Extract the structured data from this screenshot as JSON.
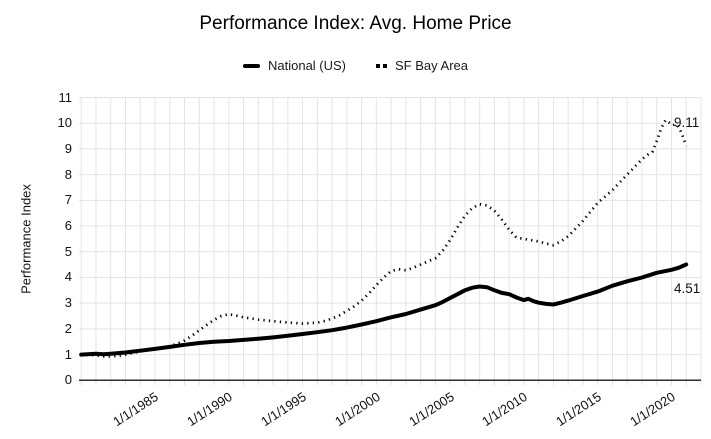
{
  "title": "Performance Index: Avg. Home Price",
  "legend": [
    {
      "label": "National (US)",
      "marker": "solid-dash"
    },
    {
      "label": "SF Bay Area",
      "marker": "dotted"
    }
  ],
  "colors": {
    "series": "#000000",
    "grid": "#e4e4e4",
    "axis": "#2d2d2d",
    "text": "#111111",
    "background": "#ffffff"
  },
  "chart_data": {
    "type": "line",
    "title": "Performance Index: Avg. Home Price",
    "xlabel": "",
    "ylabel": "Performance Index",
    "ylim": [
      0,
      11
    ],
    "xlim": [
      1979.85,
      2022
    ],
    "grid": true,
    "legend_position": "top",
    "y_ticks": [
      0,
      1,
      2,
      3,
      4,
      5,
      6,
      7,
      8,
      9,
      10,
      11
    ],
    "x_ticks": [
      {
        "year": 1985,
        "label": "1/1/1985"
      },
      {
        "year": 1990,
        "label": "1/1/1990"
      },
      {
        "year": 1995,
        "label": "1/1/1995"
      },
      {
        "year": 2000,
        "label": "1/1/2000"
      },
      {
        "year": 2005,
        "label": "1/1/2005"
      },
      {
        "year": 2010,
        "label": "1/1/2010"
      },
      {
        "year": 2015,
        "label": "1/1/2015"
      },
      {
        "year": 2020,
        "label": "1/1/2020"
      }
    ],
    "series": [
      {
        "name": "National (US)",
        "style": "solid",
        "color": "#000000",
        "points": [
          [
            1980,
            1.0
          ],
          [
            1981,
            1.03
          ],
          [
            1981.5,
            1.01
          ],
          [
            1982,
            1.03
          ],
          [
            1983,
            1.08
          ],
          [
            1984,
            1.15
          ],
          [
            1985,
            1.22
          ],
          [
            1986,
            1.3
          ],
          [
            1987,
            1.38
          ],
          [
            1988,
            1.45
          ],
          [
            1989,
            1.5
          ],
          [
            1990,
            1.53
          ],
          [
            1991,
            1.57
          ],
          [
            1992,
            1.62
          ],
          [
            1993,
            1.67
          ],
          [
            1994,
            1.73
          ],
          [
            1995,
            1.8
          ],
          [
            1996,
            1.87
          ],
          [
            1997,
            1.95
          ],
          [
            1998,
            2.05
          ],
          [
            1999,
            2.17
          ],
          [
            2000,
            2.3
          ],
          [
            2001,
            2.45
          ],
          [
            2002,
            2.58
          ],
          [
            2003,
            2.75
          ],
          [
            2004,
            2.92
          ],
          [
            2004.5,
            3.05
          ],
          [
            2005,
            3.2
          ],
          [
            2005.5,
            3.35
          ],
          [
            2006,
            3.5
          ],
          [
            2006.5,
            3.6
          ],
          [
            2007,
            3.65
          ],
          [
            2007.5,
            3.62
          ],
          [
            2008,
            3.5
          ],
          [
            2008.5,
            3.4
          ],
          [
            2009,
            3.35
          ],
          [
            2009.5,
            3.22
          ],
          [
            2010,
            3.12
          ],
          [
            2010.3,
            3.17
          ],
          [
            2010.7,
            3.07
          ],
          [
            2011,
            3.02
          ],
          [
            2011.5,
            2.97
          ],
          [
            2012,
            2.95
          ],
          [
            2012.5,
            3.02
          ],
          [
            2013,
            3.1
          ],
          [
            2014,
            3.28
          ],
          [
            2015,
            3.45
          ],
          [
            2016,
            3.68
          ],
          [
            2017,
            3.85
          ],
          [
            2018,
            4.0
          ],
          [
            2019,
            4.18
          ],
          [
            2020,
            4.3
          ],
          [
            2020.5,
            4.38
          ],
          [
            2021,
            4.51
          ]
        ]
      },
      {
        "name": "SF Bay Area",
        "style": "dotted",
        "color": "#000000",
        "points": [
          [
            1980,
            1.0
          ],
          [
            1980.5,
            0.99
          ],
          [
            1981,
            0.97
          ],
          [
            1981.7,
            0.92
          ],
          [
            1982.5,
            0.95
          ],
          [
            1983,
            1.0
          ],
          [
            1984,
            1.12
          ],
          [
            1985,
            1.22
          ],
          [
            1986,
            1.33
          ],
          [
            1986.5,
            1.42
          ],
          [
            1987,
            1.55
          ],
          [
            1987.5,
            1.73
          ],
          [
            1988,
            1.95
          ],
          [
            1988.5,
            2.15
          ],
          [
            1989,
            2.35
          ],
          [
            1989.5,
            2.5
          ],
          [
            1990,
            2.57
          ],
          [
            1990.5,
            2.52
          ],
          [
            1991,
            2.45
          ],
          [
            1992,
            2.36
          ],
          [
            1993,
            2.3
          ],
          [
            1994,
            2.25
          ],
          [
            1995,
            2.21
          ],
          [
            1996,
            2.24
          ],
          [
            1996.5,
            2.31
          ],
          [
            1997,
            2.4
          ],
          [
            1997.5,
            2.53
          ],
          [
            1998,
            2.7
          ],
          [
            1998.5,
            2.88
          ],
          [
            1999,
            3.1
          ],
          [
            1999.5,
            3.38
          ],
          [
            2000,
            3.7
          ],
          [
            2000.5,
            4.0
          ],
          [
            2001,
            4.25
          ],
          [
            2001.5,
            4.32
          ],
          [
            2002,
            4.28
          ],
          [
            2002.5,
            4.38
          ],
          [
            2003,
            4.5
          ],
          [
            2004,
            4.75
          ],
          [
            2004.5,
            5.05
          ],
          [
            2005,
            5.45
          ],
          [
            2005.5,
            5.95
          ],
          [
            2006,
            6.4
          ],
          [
            2006.5,
            6.7
          ],
          [
            2007,
            6.85
          ],
          [
            2007.5,
            6.8
          ],
          [
            2008,
            6.6
          ],
          [
            2008.5,
            6.25
          ],
          [
            2009,
            5.85
          ],
          [
            2009.5,
            5.55
          ],
          [
            2010,
            5.5
          ],
          [
            2011,
            5.4
          ],
          [
            2011.5,
            5.32
          ],
          [
            2012,
            5.26
          ],
          [
            2012.5,
            5.4
          ],
          [
            2013,
            5.6
          ],
          [
            2013.5,
            5.9
          ],
          [
            2014,
            6.2
          ],
          [
            2014.5,
            6.55
          ],
          [
            2015,
            6.9
          ],
          [
            2015.5,
            7.15
          ],
          [
            2016,
            7.4
          ],
          [
            2016.5,
            7.7
          ],
          [
            2017,
            8.0
          ],
          [
            2017.5,
            8.3
          ],
          [
            2018,
            8.6
          ],
          [
            2018.4,
            8.78
          ],
          [
            2018.7,
            8.88
          ],
          [
            2019,
            9.3
          ],
          [
            2019.3,
            9.8
          ],
          [
            2019.6,
            10.12
          ],
          [
            2019.9,
            10.0
          ],
          [
            2020.1,
            9.92
          ],
          [
            2020.3,
            9.97
          ],
          [
            2020.5,
            9.85
          ],
          [
            2020.7,
            9.6
          ],
          [
            2020.85,
            9.35
          ],
          [
            2021,
            9.11
          ]
        ]
      }
    ],
    "annotations": [
      {
        "series": "SF Bay Area",
        "text": "9.11"
      },
      {
        "series": "National (US)",
        "text": "4.51"
      }
    ]
  }
}
